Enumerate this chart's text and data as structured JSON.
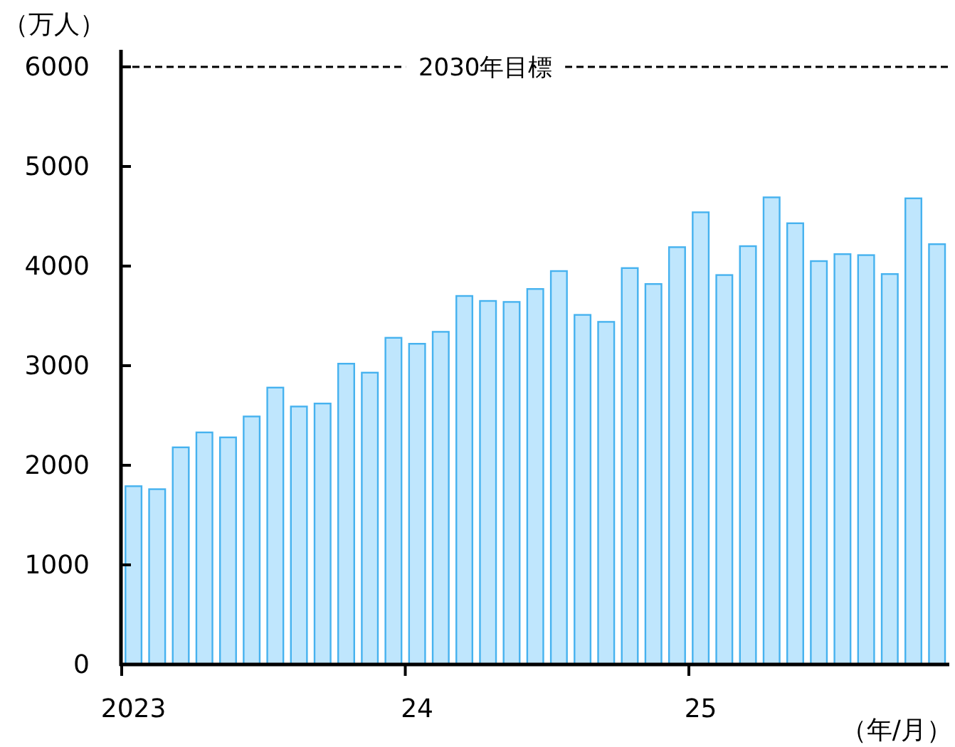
{
  "chart_data": {
    "type": "bar",
    "ylabel": "（万人）",
    "xlabel": "（年/月）",
    "categories": [
      "2023",
      null,
      null,
      null,
      null,
      null,
      null,
      null,
      null,
      null,
      null,
      null,
      "24",
      null,
      null,
      null,
      null,
      null,
      null,
      null,
      null,
      null,
      null,
      null,
      "25",
      null,
      null,
      null,
      null,
      null,
      null,
      null,
      null,
      null,
      null
    ],
    "values": [
      1790,
      1760,
      2180,
      2330,
      2280,
      2490,
      2780,
      2590,
      2620,
      3020,
      2930,
      3280,
      3220,
      3340,
      3700,
      3650,
      3640,
      3770,
      3950,
      3510,
      3440,
      3980,
      3820,
      4190,
      4540,
      3910,
      4200,
      4690,
      4430,
      4050,
      4120,
      4110,
      3920,
      4680,
      4220
    ],
    "color": "#bfe6fd",
    "ylim": [
      0,
      6000
    ],
    "yticks": [
      0,
      1000,
      2000,
      3000,
      4000,
      5000,
      6000
    ],
    "ref_lines": [
      {
        "axis": "y",
        "value": 6000,
        "label": "2030年目標",
        "color": "#000000",
        "line_style": "dashed"
      }
    ]
  }
}
